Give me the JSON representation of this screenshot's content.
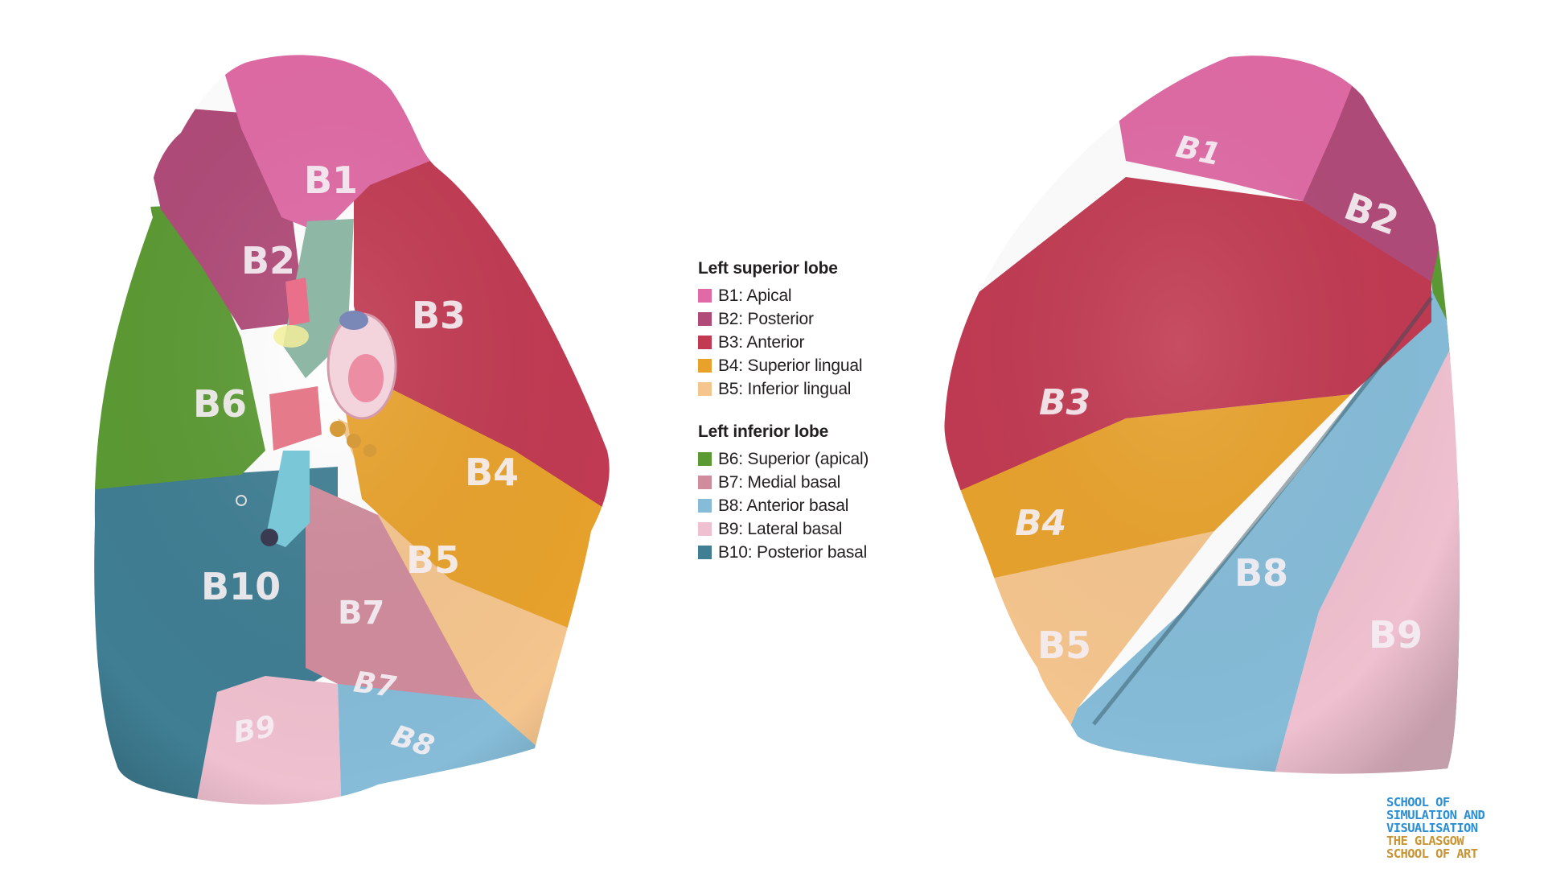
{
  "medial_view_labels": {
    "b1": "B1",
    "b2": "B2",
    "b3": "B3",
    "b4": "B4",
    "b5": "B5",
    "b6": "B6",
    "b7_front": "B7",
    "b7_base": "B7",
    "b8": "B8",
    "b9": "B9",
    "b10": "B10"
  },
  "lateral_view_labels": {
    "b1": "B1",
    "b2": "B2",
    "b3": "B3",
    "b4": "B4",
    "b5": "B5",
    "b8": "B8",
    "b9": "B9"
  },
  "legend": {
    "superior": {
      "heading": "Left superior lobe",
      "items": [
        {
          "label": "B1: Apical",
          "color": "#e06aa5"
        },
        {
          "label": "B2: Posterior",
          "color": "#b04a78"
        },
        {
          "label": "B3: Anterior",
          "color": "#c13a52"
        },
        {
          "label": "B4: Superior lingual",
          "color": "#e8a22c"
        },
        {
          "label": "B5: Inferior lingual",
          "color": "#f5c58e"
        }
      ]
    },
    "inferior": {
      "heading": "Left inferior lobe",
      "items": [
        {
          "label": "B6: Superior (apical)",
          "color": "#5b9a33"
        },
        {
          "label": "B7: Medial basal",
          "color": "#d08c9c"
        },
        {
          "label": "B8: Anterior basal",
          "color": "#86bcd8"
        },
        {
          "label": "B9: Lateral basal",
          "color": "#efc0cf"
        },
        {
          "label": "B10: Posterior basal",
          "color": "#3f7e93"
        }
      ]
    }
  },
  "brand": {
    "line1": "SCHOOL OF",
    "line2": "SIMULATION AND",
    "line3": "VISUALISATION",
    "line4": "THE GLASGOW",
    "line5": "SCHOOL OF ART",
    "blue": "#2b8fd6",
    "gold": "#c99432"
  }
}
